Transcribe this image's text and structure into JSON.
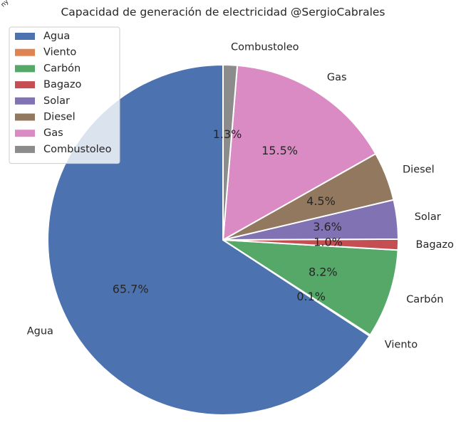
{
  "chart_data": {
    "type": "pie",
    "title": "Capacidad de generación de electricidad @SergioCabrales",
    "categories": [
      "Agua",
      "Viento",
      "Carbón",
      "Bagazo",
      "Solar",
      "Diesel",
      "Gas",
      "Combustoleo"
    ],
    "values": [
      65.7,
      0.1,
      8.2,
      1.0,
      3.6,
      4.5,
      15.5,
      1.3
    ],
    "value_labels": [
      "65.7%",
      "0.1%",
      "8.2%",
      "1.0%",
      "3.6%",
      "4.5%",
      "15.5%",
      "1.3%"
    ],
    "colors": [
      "#4c72b0",
      "#dd8452",
      "#55a868",
      "#c44e52",
      "#8172b3",
      "#937860",
      "#da8bc3",
      "#8c8c8c"
    ],
    "legend": {
      "placement": "top-left",
      "entries": [
        "Agua",
        "Viento",
        "Carbón",
        "Bagazo",
        "Solar",
        "Diesel",
        "Gas",
        "Combustoleo"
      ]
    },
    "start_angle_deg": 90,
    "direction": "counterclockwise",
    "grid": false
  },
  "corner_mark": "ny"
}
